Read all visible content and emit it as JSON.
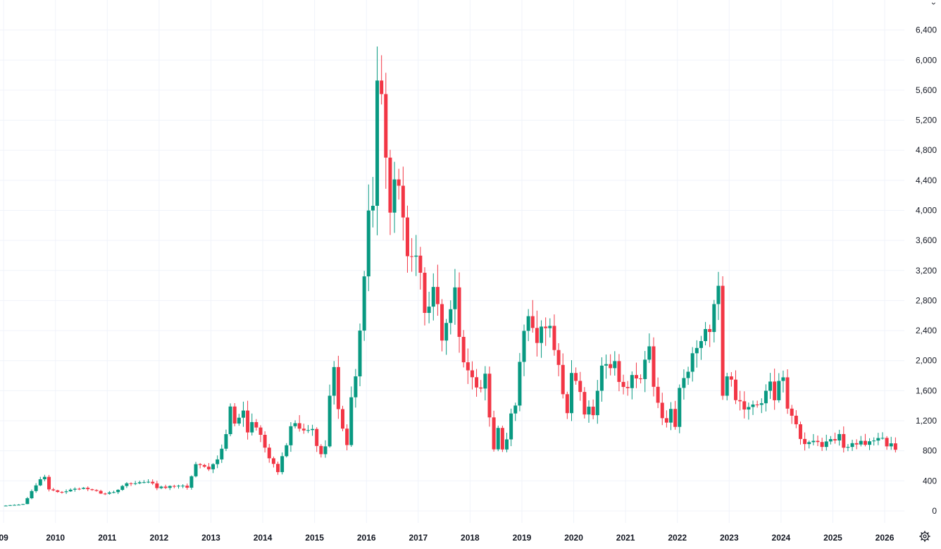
{
  "chart_data": {
    "type": "candlestick",
    "interval": "monthly",
    "y_ticks": [
      0,
      400,
      800,
      1200,
      1600,
      2000,
      2400,
      2800,
      3200,
      3600,
      4000,
      4400,
      4800,
      5200,
      5600,
      6000,
      6400
    ],
    "y_tick_labels": [
      "0",
      "400",
      "800",
      "1,200",
      "1,600",
      "2,000",
      "2,400",
      "2,800",
      "3,200",
      "3,600",
      "4,000",
      "4,400",
      "4,800",
      "5,200",
      "5,600",
      "6,000",
      "6,400"
    ],
    "ylim": [
      -160,
      6800
    ],
    "x_tick_labels": [
      "09",
      "2010",
      "2011",
      "2012",
      "2013",
      "2014",
      "2015",
      "2016",
      "2017",
      "2018",
      "2019",
      "2020",
      "2021",
      "2022",
      "2023",
      "2024",
      "2025",
      "2026"
    ],
    "xlim_years": [
      2008.93,
      2026.38
    ],
    "colors": {
      "up": "#089981",
      "down": "#f23645",
      "grid": "#f0f3fa",
      "text": "#131722"
    },
    "anchors": [
      [
        "2009-01",
        70
      ],
      [
        "2009-02",
        75
      ],
      [
        "2009-03",
        80
      ],
      [
        "2009-05",
        90
      ],
      [
        "2009-06",
        170
      ],
      [
        "2009-07",
        260
      ],
      [
        "2009-08",
        340
      ],
      [
        "2009-09",
        410
      ],
      [
        "2009-10",
        440
      ],
      [
        "2009-11",
        300
      ],
      [
        "2010-01",
        250
      ],
      [
        "2010-04",
        280
      ],
      [
        "2010-07",
        320
      ],
      [
        "2010-10",
        260
      ],
      [
        "2010-12",
        220
      ],
      [
        "2011-03",
        280
      ],
      [
        "2011-05",
        360
      ],
      [
        "2011-08",
        380
      ],
      [
        "2011-10",
        390
      ],
      [
        "2011-12",
        310
      ],
      [
        "2012-03",
        320
      ],
      [
        "2012-06",
        320
      ],
      [
        "2012-07",
        320
      ],
      [
        "2012-08",
        450
      ],
      [
        "2012-09",
        600
      ],
      [
        "2012-10",
        640
      ],
      [
        "2012-12",
        560
      ],
      [
        "2013-02",
        720
      ],
      [
        "2013-04",
        1000
      ],
      [
        "2013-05",
        1420
      ],
      [
        "2013-06",
        1150
      ],
      [
        "2013-08",
        1300
      ],
      [
        "2013-09",
        1000
      ],
      [
        "2013-10",
        1200
      ],
      [
        "2013-12",
        1050
      ],
      [
        "2014-02",
        700
      ],
      [
        "2014-04",
        500
      ],
      [
        "2014-06",
        900
      ],
      [
        "2014-07",
        1100
      ],
      [
        "2014-09",
        1150
      ],
      [
        "2014-12",
        1050
      ],
      [
        "2015-01",
        880
      ],
      [
        "2015-02",
        760
      ],
      [
        "2015-03",
        850
      ],
      [
        "2015-04",
        1600
      ],
      [
        "2015-05",
        1850
      ],
      [
        "2015-06",
        1400
      ],
      [
        "2015-07",
        1150
      ],
      [
        "2015-08",
        920
      ],
      [
        "2015-09",
        1450
      ],
      [
        "2015-10",
        1750
      ],
      [
        "2015-11",
        2480
      ],
      [
        "2015-12",
        3000
      ],
      [
        "2016-01",
        3900
      ],
      [
        "2016-02",
        4050
      ],
      [
        "2016-03",
        5620
      ],
      [
        "2016-04",
        5300
      ],
      [
        "2016-05",
        4750
      ],
      [
        "2016-06",
        4150
      ],
      [
        "2016-07",
        4400
      ],
      [
        "2016-08",
        4500
      ],
      [
        "2016-09",
        3920
      ],
      [
        "2016-10",
        3550
      ],
      [
        "2016-11",
        3350
      ],
      [
        "2016-12",
        3250
      ],
      [
        "2017-01",
        3300
      ],
      [
        "2017-02",
        2700
      ],
      [
        "2017-03",
        2850
      ],
      [
        "2017-04",
        3100
      ],
      [
        "2017-05",
        2800
      ],
      [
        "2017-06",
        2250
      ],
      [
        "2017-07",
        2600
      ],
      [
        "2017-08",
        2750
      ],
      [
        "2017-09",
        2950
      ],
      [
        "2017-10",
        2400
      ],
      [
        "2017-11",
        2050
      ],
      [
        "2017-12",
        1900
      ],
      [
        "2018-02",
        1600
      ],
      [
        "2018-04",
        1750
      ],
      [
        "2018-06",
        850
      ],
      [
        "2018-07",
        1100
      ],
      [
        "2018-08",
        800
      ],
      [
        "2018-09",
        1000
      ],
      [
        "2018-10",
        1300
      ],
      [
        "2018-11",
        1400
      ],
      [
        "2018-12",
        2000
      ],
      [
        "2019-01",
        2350
      ],
      [
        "2019-02",
        2500
      ],
      [
        "2019-04",
        2300
      ],
      [
        "2019-06",
        2550
      ],
      [
        "2019-08",
        2150
      ],
      [
        "2019-10",
        1600
      ],
      [
        "2019-11",
        1350
      ],
      [
        "2019-12",
        1800
      ],
      [
        "2020-02",
        1650
      ],
      [
        "2020-03",
        1350
      ],
      [
        "2020-05",
        1300
      ],
      [
        "2020-06",
        1600
      ],
      [
        "2020-07",
        1900
      ],
      [
        "2020-08",
        2000
      ],
      [
        "2020-10",
        1950
      ],
      [
        "2020-12",
        1600
      ],
      [
        "2021-02",
        1800
      ],
      [
        "2021-04",
        1750
      ],
      [
        "2021-05",
        2050
      ],
      [
        "2021-06",
        2100
      ],
      [
        "2021-07",
        1600
      ],
      [
        "2021-09",
        1250
      ],
      [
        "2021-10",
        1150
      ],
      [
        "2021-11",
        1300
      ],
      [
        "2021-12",
        1100
      ],
      [
        "2022-01",
        1650
      ],
      [
        "2022-02",
        1700
      ],
      [
        "2022-03",
        1850
      ],
      [
        "2022-04",
        2000
      ],
      [
        "2022-05",
        2200
      ],
      [
        "2022-06",
        2350
      ],
      [
        "2022-07",
        2450
      ],
      [
        "2022-08",
        2300
      ],
      [
        "2022-09",
        2650
      ],
      [
        "2022-10",
        3100
      ],
      [
        "2022-11",
        1600
      ],
      [
        "2022-12",
        1850
      ],
      [
        "2023-02",
        1550
      ],
      [
        "2023-04",
        1400
      ],
      [
        "2023-06",
        1430
      ],
      [
        "2023-08",
        1450
      ],
      [
        "2023-10",
        1700
      ],
      [
        "2023-11",
        1450
      ],
      [
        "2023-12",
        1700
      ],
      [
        "2024-01",
        1700
      ],
      [
        "2024-02",
        1400
      ],
      [
        "2024-04",
        1200
      ],
      [
        "2024-05",
        1000
      ],
      [
        "2024-06",
        880
      ],
      [
        "2024-08",
        900
      ],
      [
        "2024-10",
        880
      ],
      [
        "2024-12",
        920
      ],
      [
        "2025-02",
        980
      ],
      [
        "2025-03",
        870
      ],
      [
        "2025-05",
        880
      ],
      [
        "2025-07",
        900
      ],
      [
        "2025-09",
        950
      ],
      [
        "2025-11",
        1000
      ],
      [
        "2026-01",
        870
      ],
      [
        "2026-02",
        860
      ],
      [
        "2026-03",
        810
      ]
    ]
  },
  "ui": {
    "settings_icon": "gear-icon",
    "corner_glyph": "›"
  }
}
